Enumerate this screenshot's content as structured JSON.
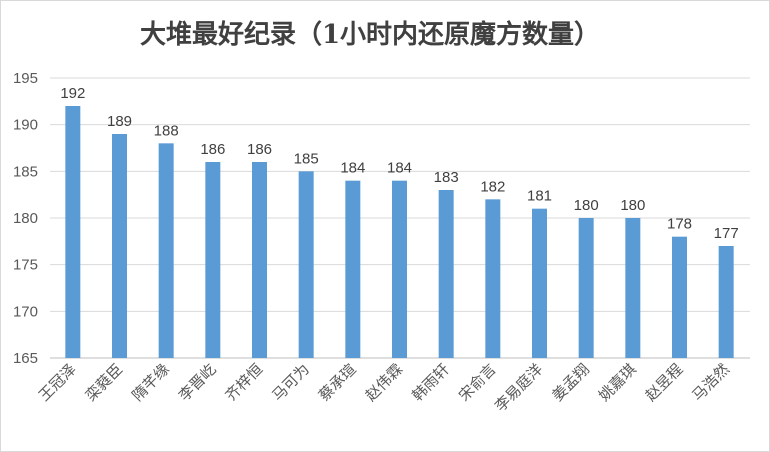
{
  "chart_data": {
    "type": "bar",
    "title": "大堆最好纪录（1小时内还原魔方数量）",
    "xlabel": "",
    "ylabel": "",
    "ylim": [
      165,
      195
    ],
    "yticks": [
      165,
      170,
      175,
      180,
      185,
      190,
      195
    ],
    "grid": true,
    "legend": "none",
    "bar_color": "#5b9bd5",
    "categories": [
      "王冠泽",
      "栾蕤臣",
      "隋芊缘",
      "李晋屹",
      "齐梓恒",
      "马可为",
      "蔡承瑄",
      "赵伟霖",
      "韩雨轩",
      "宋俞言",
      "李易庭洋",
      "姜孟翔",
      "姚嘉琪",
      "赵昱程",
      "马浩然"
    ],
    "values": [
      192,
      189,
      188,
      186,
      186,
      185,
      184,
      184,
      183,
      182,
      181,
      180,
      180,
      178,
      177
    ]
  }
}
